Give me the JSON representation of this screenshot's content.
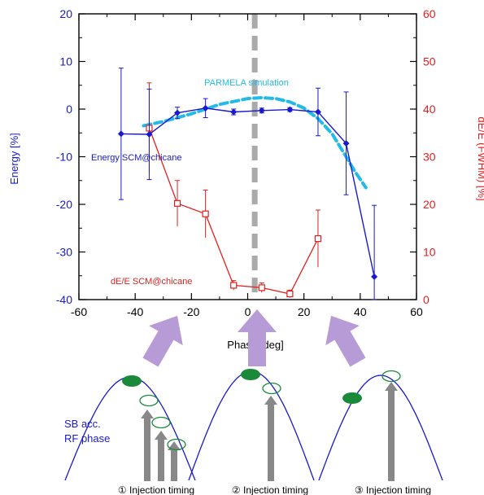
{
  "chart_data": {
    "type": "line",
    "xlabel": "Phase [deg]",
    "ylabel_left": "Energy [%]",
    "ylabel_right": "dE/E (FWHM) [%]",
    "xlim": [
      -60,
      60
    ],
    "ylim_left": [
      -40,
      20
    ],
    "ylim_right": [
      0,
      60
    ],
    "x_ticks": [
      -60,
      -40,
      -20,
      0,
      20,
      40,
      60
    ],
    "y_left_ticks": [
      -40,
      -30,
      -20,
      -10,
      0,
      10,
      20
    ],
    "y_right_ticks": [
      0,
      10,
      20,
      30,
      40,
      50,
      60
    ],
    "colors": {
      "energy": "#1a1acc",
      "spread": "#e02020",
      "simulation": "#22bbe8",
      "zero_marker": "#aaaaaa",
      "arrow_light": "#b79bd6",
      "arrow_gray": "#888888",
      "bunch": "#1a8a3a"
    },
    "series": [
      {
        "name": "Energy SCM@chicane",
        "axis": "left",
        "x": [
          -45,
          -35,
          -25,
          -15,
          -5,
          5,
          15,
          25,
          35,
          45
        ],
        "y": [
          -5.2,
          -5.3,
          -0.8,
          0.2,
          -0.6,
          -0.3,
          -0.1,
          -0.6,
          -7.2,
          -35.2
        ],
        "err": [
          13.8,
          9.5,
          1.2,
          2.0,
          0.6,
          0.5,
          0.4,
          5.0,
          10.8,
          15.0
        ]
      },
      {
        "name": "dE/E SCM@chicane",
        "axis": "right",
        "x": [
          -35,
          -25,
          -15,
          -5,
          5,
          15,
          25
        ],
        "y": [
          36.0,
          20.2,
          18.0,
          3.0,
          2.5,
          1.2,
          12.8
        ],
        "err": [
          9.5,
          4.8,
          5.0,
          1.0,
          1.0,
          0.8,
          6.0
        ]
      },
      {
        "name": "PARMELA simulation",
        "axis": "left",
        "style": "dashed",
        "x": [
          -37,
          -30,
          -20,
          -10,
          0,
          5,
          10,
          15,
          20,
          25,
          30,
          35,
          38,
          42
        ],
        "y": [
          -3.5,
          -2.6,
          -1.0,
          1.0,
          2.2,
          2.4,
          2.2,
          1.5,
          0.2,
          -2.0,
          -5.2,
          -10.0,
          -13.0,
          -16.5
        ]
      }
    ],
    "annotations": {
      "simulation_label": "PARMELA simulation",
      "energy_label": "Energy SCM@chicane",
      "spread_label": "dE/E SCM@chicane"
    },
    "zero_line_x": 2.5
  },
  "diagram": {
    "curve_label_line1": "SB acc.",
    "curve_label_line2": "RF phase",
    "timing_labels": [
      "① Injection timing",
      "② Injection timing",
      "③ Injection timing"
    ]
  }
}
